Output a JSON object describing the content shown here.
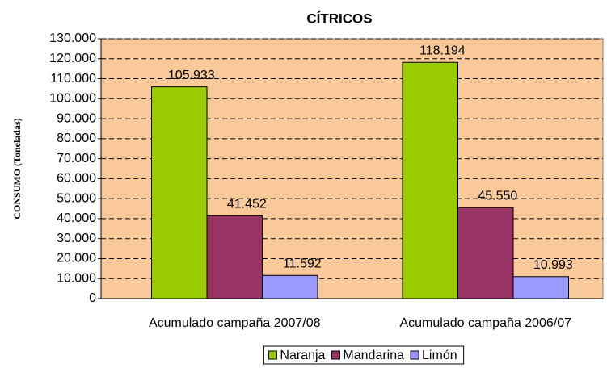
{
  "chart_data": {
    "type": "bar",
    "title": "CÍTRICOS",
    "y_label": "CONSUMO (Toneladas)",
    "categories": [
      "Acumulado campaña 2007/08",
      "Acumulado campaña 2006/07"
    ],
    "series": [
      {
        "name": "Naranja",
        "color": "#99cc00",
        "values": [
          105933,
          118194
        ],
        "value_labels": [
          "105.933",
          "118.194"
        ]
      },
      {
        "name": "Mandarina",
        "color": "#993366",
        "values": [
          41452,
          45550
        ],
        "value_labels": [
          "41.452",
          "45.550"
        ]
      },
      {
        "name": "Limón",
        "color": "#9999ff",
        "values": [
          11592,
          10993
        ],
        "value_labels": [
          "11.592",
          "10.993"
        ]
      }
    ],
    "ylim": [
      0,
      130000
    ],
    "yticks": [
      0,
      {
        "value": 10000,
        "label": "10.000"
      },
      {
        "value": 20000,
        "label": "20.000"
      },
      {
        "value": 30000,
        "label": "30.000"
      },
      {
        "value": 40000,
        "label": "40.000"
      },
      {
        "value": 50000,
        "label": "50.000"
      },
      {
        "value": 60000,
        "label": "60.000"
      },
      {
        "value": 70000,
        "label": "70.000"
      },
      {
        "value": 80000,
        "label": "80.000"
      },
      {
        "value": 90000,
        "label": "90.000"
      },
      {
        "value": 100000,
        "label": "100.000"
      },
      {
        "value": 110000,
        "label": "110.000"
      },
      {
        "value": 120000,
        "label": "120.000"
      },
      {
        "value": 130000,
        "label": "130.000"
      }
    ],
    "grid": true,
    "legend": "bottom",
    "background": "#f9c99a"
  }
}
